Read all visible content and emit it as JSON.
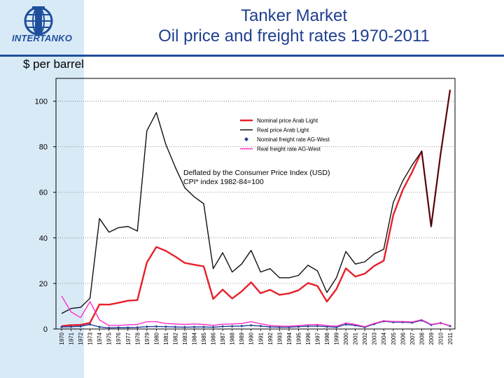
{
  "header": {
    "title_line1": "Tanker Market",
    "title_line2": "Oil price and freight rates 1970-2011",
    "logo_text": "INTERTANKO"
  },
  "chart_data": {
    "type": "line",
    "ylabel": "$ per barrel",
    "ylim": [
      0,
      110
    ],
    "yticks": [
      0,
      20,
      40,
      60,
      80,
      100
    ],
    "annotation": [
      "Deflated by the Consumer Price Index (USD)",
      "CPI* index 1982-84=100"
    ],
    "x": [
      "1970",
      "1971",
      "1972",
      "1973",
      "1974",
      "1975",
      "1976",
      "1977",
      "1978",
      "1979",
      "1980",
      "1981",
      "1982",
      "1983",
      "1984",
      "1985",
      "1986",
      "1987",
      "1988",
      "1989",
      "1990",
      "1991",
      "1992",
      "1993",
      "1994",
      "1995",
      "1996",
      "1997",
      "1998",
      "1999",
      "2000",
      "2001",
      "2002",
      "2003",
      "2004",
      "2005",
      "2006",
      "2007",
      "2008",
      "2009",
      "2010",
      "2011"
    ],
    "series": [
      {
        "name": "Nominal price Arab Light",
        "color": "#e8202a",
        "marker": "none",
        "values": [
          1.3,
          1.7,
          1.8,
          2.7,
          10.8,
          10.7,
          11.5,
          12.4,
          12.7,
          29.2,
          36.0,
          34.3,
          31.8,
          29.0,
          28.2,
          27.5,
          13.2,
          17.3,
          13.4,
          16.5,
          20.5,
          15.7,
          17.2,
          15.0,
          15.6,
          17.0,
          20.2,
          18.9,
          12.0,
          17.5,
          26.6,
          23.0,
          24.3,
          27.7,
          30.0,
          50.0,
          61.0,
          69.0,
          78.0,
          45.0,
          77.0,
          105.0
        ]
      },
      {
        "name": "Real price Arab Light",
        "color": "#111111",
        "marker": "none",
        "values": [
          6.8,
          9.0,
          9.5,
          13.5,
          48.5,
          42.5,
          44.5,
          45.0,
          43.0,
          87.0,
          95.0,
          81.0,
          71.0,
          62.0,
          58.0,
          55.0,
          26.5,
          33.5,
          25.0,
          28.5,
          34.5,
          25.0,
          26.5,
          22.5,
          22.5,
          23.5,
          28.0,
          25.5,
          16.0,
          22.5,
          34.0,
          28.5,
          29.5,
          33.0,
          35.0,
          55.5,
          65.0,
          72.0,
          78.0,
          45.0,
          77.0,
          105.0
        ]
      },
      {
        "name": "Nominal freight rate AG-West",
        "color": "#1f3f8f",
        "marker": "diamond",
        "values": [
          0.9,
          1.0,
          1.2,
          2.0,
          0.9,
          0.5,
          0.6,
          0.6,
          0.7,
          1.0,
          1.1,
          1.0,
          0.9,
          0.8,
          0.9,
          0.9,
          0.8,
          1.1,
          1.2,
          1.3,
          1.6,
          1.3,
          0.9,
          0.8,
          0.8,
          1.0,
          1.2,
          1.3,
          1.0,
          0.8,
          2.0,
          1.6,
          0.8,
          2.2,
          3.4,
          3.0,
          3.0,
          2.8,
          3.8,
          1.8,
          2.6,
          1.3
        ]
      },
      {
        "name": "Real freight rate AG-West",
        "color": "#ff2ec8",
        "marker": "none",
        "values": [
          14.5,
          7.5,
          5.0,
          12.0,
          4.0,
          1.5,
          1.6,
          1.8,
          2.0,
          3.2,
          3.2,
          2.4,
          2.2,
          2.0,
          2.2,
          2.0,
          1.6,
          2.1,
          2.2,
          2.4,
          3.2,
          2.3,
          1.5,
          1.3,
          1.2,
          1.5,
          1.8,
          2.0,
          1.5,
          1.2,
          2.6,
          2.0,
          1.0,
          2.5,
          3.6,
          3.3,
          3.3,
          3.1,
          4.1,
          2.0,
          2.7,
          1.4
        ]
      }
    ],
    "legend_position": "top-right",
    "grid": "horizontal-dotted"
  }
}
